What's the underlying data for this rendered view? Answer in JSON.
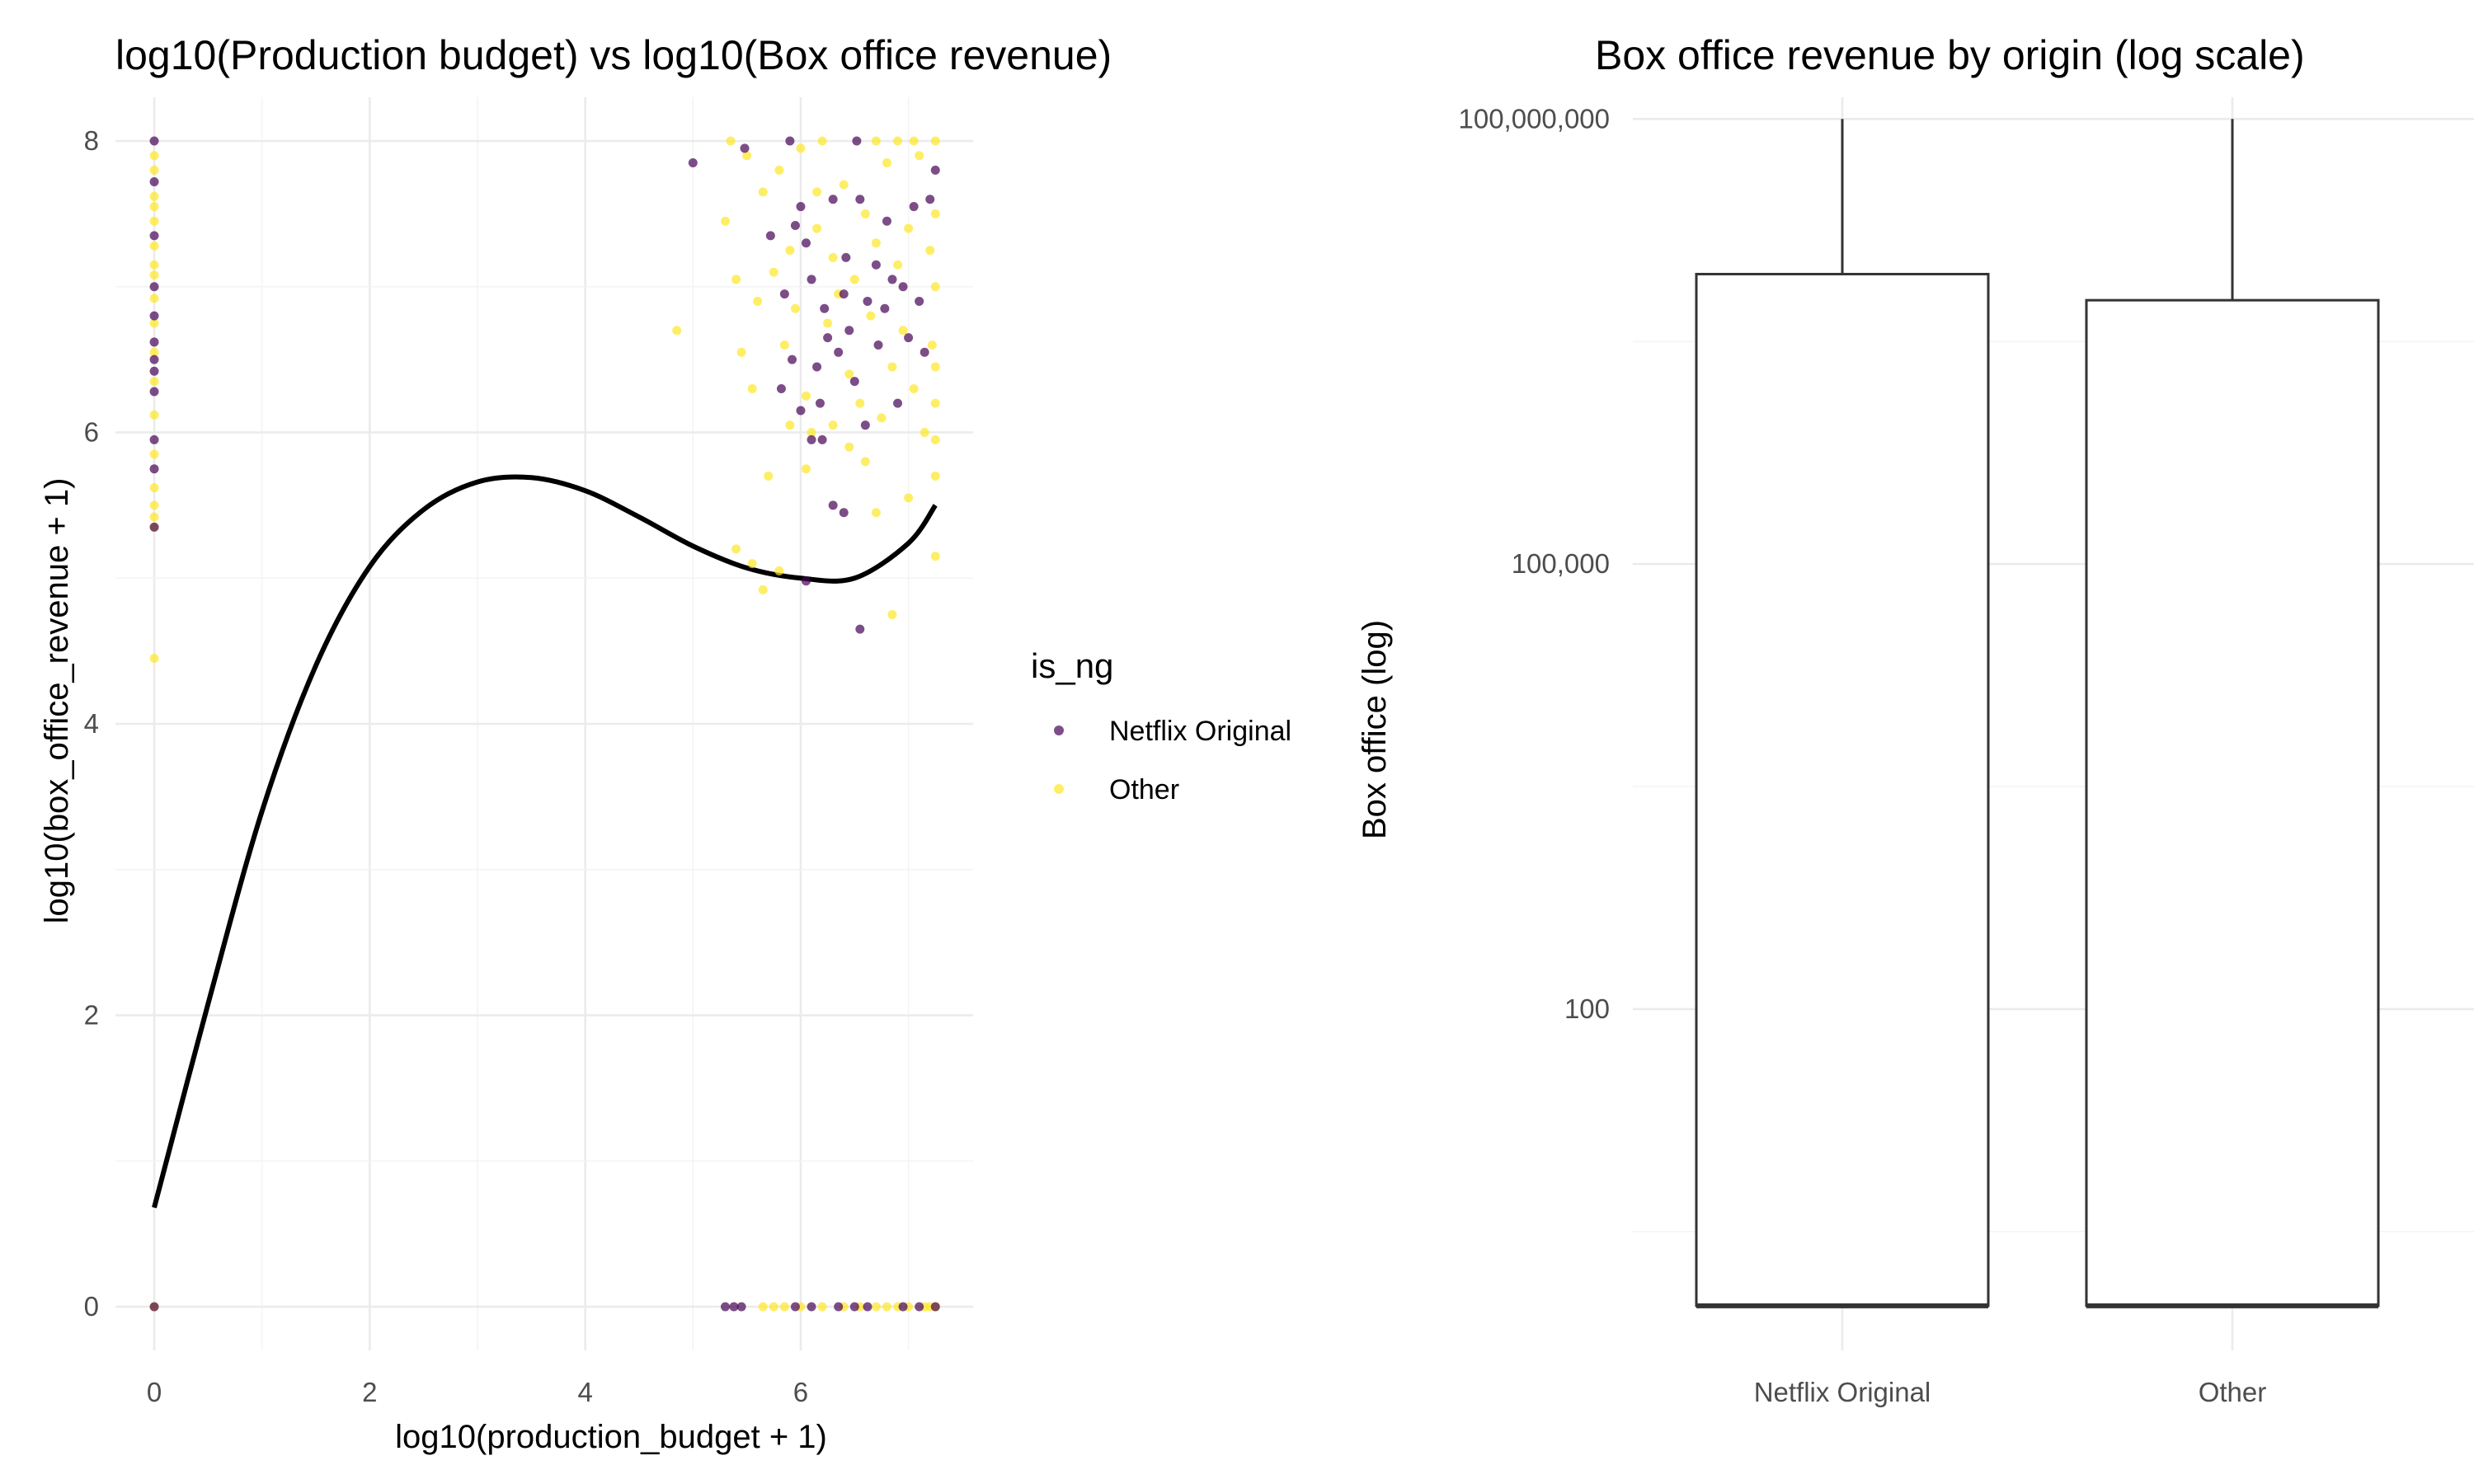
{
  "colors": {
    "netflix": "#440154",
    "other": "#FDE725",
    "smooth": "#000000",
    "box_stroke": "#333333"
  },
  "chart_data": [
    {
      "type": "scatter",
      "title": "log10(Production budget) vs log10(Box office revenue)",
      "xlabel": "log10(production_budget + 1)",
      "ylabel": "log10(box_office_revenue + 1)",
      "xlim": [
        -0.36,
        7.6
      ],
      "ylim": [
        -0.3,
        8.3
      ],
      "x_ticks": [
        0,
        2,
        4,
        6
      ],
      "y_ticks": [
        0,
        2,
        4,
        6,
        8
      ],
      "grid": true,
      "legend": {
        "title": "is_ng",
        "position": "right",
        "entries": [
          "Netflix Original",
          "Other"
        ]
      },
      "series": [
        {
          "name": "Netflix Original",
          "points": [
            [
              0,
              8.0
            ],
            [
              0,
              7.72
            ],
            [
              0,
              7.35
            ],
            [
              0,
              7.0
            ],
            [
              0,
              6.8
            ],
            [
              0,
              6.62
            ],
            [
              0,
              6.5
            ],
            [
              0,
              6.42
            ],
            [
              0,
              6.28
            ],
            [
              0,
              5.95
            ],
            [
              0,
              5.75
            ],
            [
              0,
              5.35
            ],
            [
              0,
              0
            ],
            [
              5.0,
              7.85
            ],
            [
              5.48,
              7.95
            ],
            [
              5.72,
              7.35
            ],
            [
              5.85,
              6.95
            ],
            [
              5.9,
              8.0
            ],
            [
              5.95,
              7.42
            ],
            [
              6.0,
              7.55
            ],
            [
              6.05,
              7.3
            ],
            [
              6.1,
              7.05
            ],
            [
              6.15,
              6.45
            ],
            [
              6.18,
              6.2
            ],
            [
              6.2,
              5.95
            ],
            [
              6.22,
              6.85
            ],
            [
              6.25,
              6.65
            ],
            [
              6.3,
              7.6
            ],
            [
              6.35,
              6.55
            ],
            [
              6.4,
              6.95
            ],
            [
              6.42,
              7.2
            ],
            [
              6.45,
              6.7
            ],
            [
              6.5,
              6.35
            ],
            [
              6.52,
              8.0
            ],
            [
              6.55,
              7.6
            ],
            [
              6.6,
              6.05
            ],
            [
              6.62,
              6.9
            ],
            [
              6.7,
              7.15
            ],
            [
              6.72,
              6.6
            ],
            [
              6.78,
              6.85
            ],
            [
              6.8,
              7.45
            ],
            [
              6.85,
              7.05
            ],
            [
              6.9,
              6.2
            ],
            [
              6.95,
              7.0
            ],
            [
              7.0,
              6.65
            ],
            [
              7.05,
              7.55
            ],
            [
              7.1,
              6.9
            ],
            [
              7.15,
              6.55
            ],
            [
              7.2,
              7.6
            ],
            [
              7.25,
              7.8
            ],
            [
              6.0,
              6.15
            ],
            [
              6.1,
              5.95
            ],
            [
              6.3,
              5.5
            ],
            [
              6.4,
              5.45
            ],
            [
              6.05,
              4.98
            ],
            [
              6.55,
              4.65
            ],
            [
              5.82,
              6.3
            ],
            [
              5.92,
              6.5
            ],
            [
              5.3,
              0
            ],
            [
              5.38,
              0
            ],
            [
              5.45,
              0
            ],
            [
              5.95,
              0
            ],
            [
              6.1,
              0
            ],
            [
              6.35,
              0
            ],
            [
              6.5,
              0
            ],
            [
              6.62,
              0
            ],
            [
              6.95,
              0
            ],
            [
              7.1,
              0
            ],
            [
              7.25,
              0
            ]
          ]
        },
        {
          "name": "Other",
          "points": [
            [
              0,
              7.9
            ],
            [
              0,
              7.8
            ],
            [
              0,
              7.62
            ],
            [
              0,
              7.55
            ],
            [
              0,
              7.45
            ],
            [
              0,
              7.28
            ],
            [
              0,
              7.15
            ],
            [
              0,
              7.08
            ],
            [
              0,
              6.92
            ],
            [
              0,
              6.75
            ],
            [
              0,
              6.55
            ],
            [
              0,
              6.35
            ],
            [
              0,
              6.12
            ],
            [
              0,
              5.85
            ],
            [
              0,
              5.62
            ],
            [
              0,
              5.5
            ],
            [
              0,
              5.42
            ],
            [
              0,
              5.35
            ],
            [
              0,
              4.45
            ],
            [
              0,
              0
            ],
            [
              4.85,
              6.7
            ],
            [
              5.3,
              7.45
            ],
            [
              5.35,
              8.0
            ],
            [
              5.4,
              7.05
            ],
            [
              5.45,
              6.55
            ],
            [
              5.5,
              7.9
            ],
            [
              5.55,
              6.3
            ],
            [
              5.6,
              6.9
            ],
            [
              5.65,
              7.65
            ],
            [
              5.7,
              5.7
            ],
            [
              5.75,
              7.1
            ],
            [
              5.8,
              7.8
            ],
            [
              5.85,
              6.6
            ],
            [
              5.9,
              7.25
            ],
            [
              5.95,
              6.85
            ],
            [
              6.0,
              7.95
            ],
            [
              6.05,
              6.25
            ],
            [
              6.1,
              6.0
            ],
            [
              6.15,
              7.4
            ],
            [
              6.2,
              8.0
            ],
            [
              6.25,
              6.75
            ],
            [
              6.3,
              7.2
            ],
            [
              6.35,
              6.95
            ],
            [
              6.4,
              7.7
            ],
            [
              6.45,
              6.4
            ],
            [
              6.5,
              7.05
            ],
            [
              6.55,
              6.2
            ],
            [
              6.6,
              7.5
            ],
            [
              6.65,
              6.8
            ],
            [
              6.7,
              7.3
            ],
            [
              6.75,
              6.1
            ],
            [
              6.8,
              7.85
            ],
            [
              6.85,
              6.45
            ],
            [
              6.9,
              7.15
            ],
            [
              6.95,
              6.7
            ],
            [
              7.0,
              7.4
            ],
            [
              7.05,
              6.3
            ],
            [
              7.1,
              7.9
            ],
            [
              7.15,
              6.0
            ],
            [
              7.2,
              7.25
            ],
            [
              7.22,
              6.6
            ],
            [
              7.25,
              5.95
            ],
            [
              7.25,
              8.0
            ],
            [
              7.25,
              7.5
            ],
            [
              7.25,
              7.0
            ],
            [
              7.25,
              6.45
            ],
            [
              7.25,
              6.2
            ],
            [
              7.25,
              5.7
            ],
            [
              7.25,
              5.15
            ],
            [
              6.7,
              8.0
            ],
            [
              6.9,
              8.0
            ],
            [
              7.05,
              8.0
            ],
            [
              6.15,
              7.65
            ],
            [
              6.45,
              5.9
            ],
            [
              6.6,
              5.8
            ],
            [
              6.3,
              6.05
            ],
            [
              5.4,
              5.2
            ],
            [
              5.55,
              5.1
            ],
            [
              5.65,
              4.92
            ],
            [
              5.8,
              5.05
            ],
            [
              6.7,
              5.45
            ],
            [
              6.85,
              4.75
            ],
            [
              7.0,
              5.55
            ],
            [
              6.05,
              5.75
            ],
            [
              5.9,
              6.05
            ],
            [
              5.65,
              0
            ],
            [
              5.75,
              0
            ],
            [
              5.85,
              0
            ],
            [
              6.0,
              0
            ],
            [
              6.2,
              0
            ],
            [
              6.4,
              0
            ],
            [
              6.55,
              0
            ],
            [
              6.7,
              0
            ],
            [
              6.8,
              0
            ],
            [
              6.9,
              0
            ],
            [
              7.0,
              0
            ],
            [
              7.15,
              0
            ],
            [
              7.2,
              0
            ],
            [
              7.25,
              0
            ]
          ]
        }
      ],
      "smooth_line": {
        "x": [
          0,
          0.5,
          1,
          1.5,
          2,
          2.5,
          3,
          3.5,
          4,
          4.5,
          5,
          5.5,
          6,
          6.5,
          7,
          7.25
        ],
        "y": [
          0.68,
          2.08,
          3.4,
          4.4,
          5.08,
          5.47,
          5.66,
          5.69,
          5.6,
          5.42,
          5.22,
          5.07,
          5.0,
          5.0,
          5.24,
          5.5
        ]
      }
    },
    {
      "type": "box",
      "title": "Box office revenue by origin (log scale)",
      "xlabel": "",
      "ylabel": "Box office (log)",
      "y_scale": "log10",
      "ylim": [
        0.5,
        140000000
      ],
      "y_tick_values": [
        100,
        100000,
        100000000
      ],
      "y_tick_labels": [
        "100",
        "100,000",
        "100,000,000"
      ],
      "categories": [
        "Netflix Original",
        "Other"
      ],
      "boxes": [
        {
          "name": "Netflix Original",
          "lower": 1,
          "q1": 1,
          "median": 1,
          "q3": 9000000,
          "upper": 100000000
        },
        {
          "name": "Other",
          "lower": 1,
          "q1": 1,
          "median": 1,
          "q3": 6000000,
          "upper": 100000000
        }
      ]
    }
  ]
}
